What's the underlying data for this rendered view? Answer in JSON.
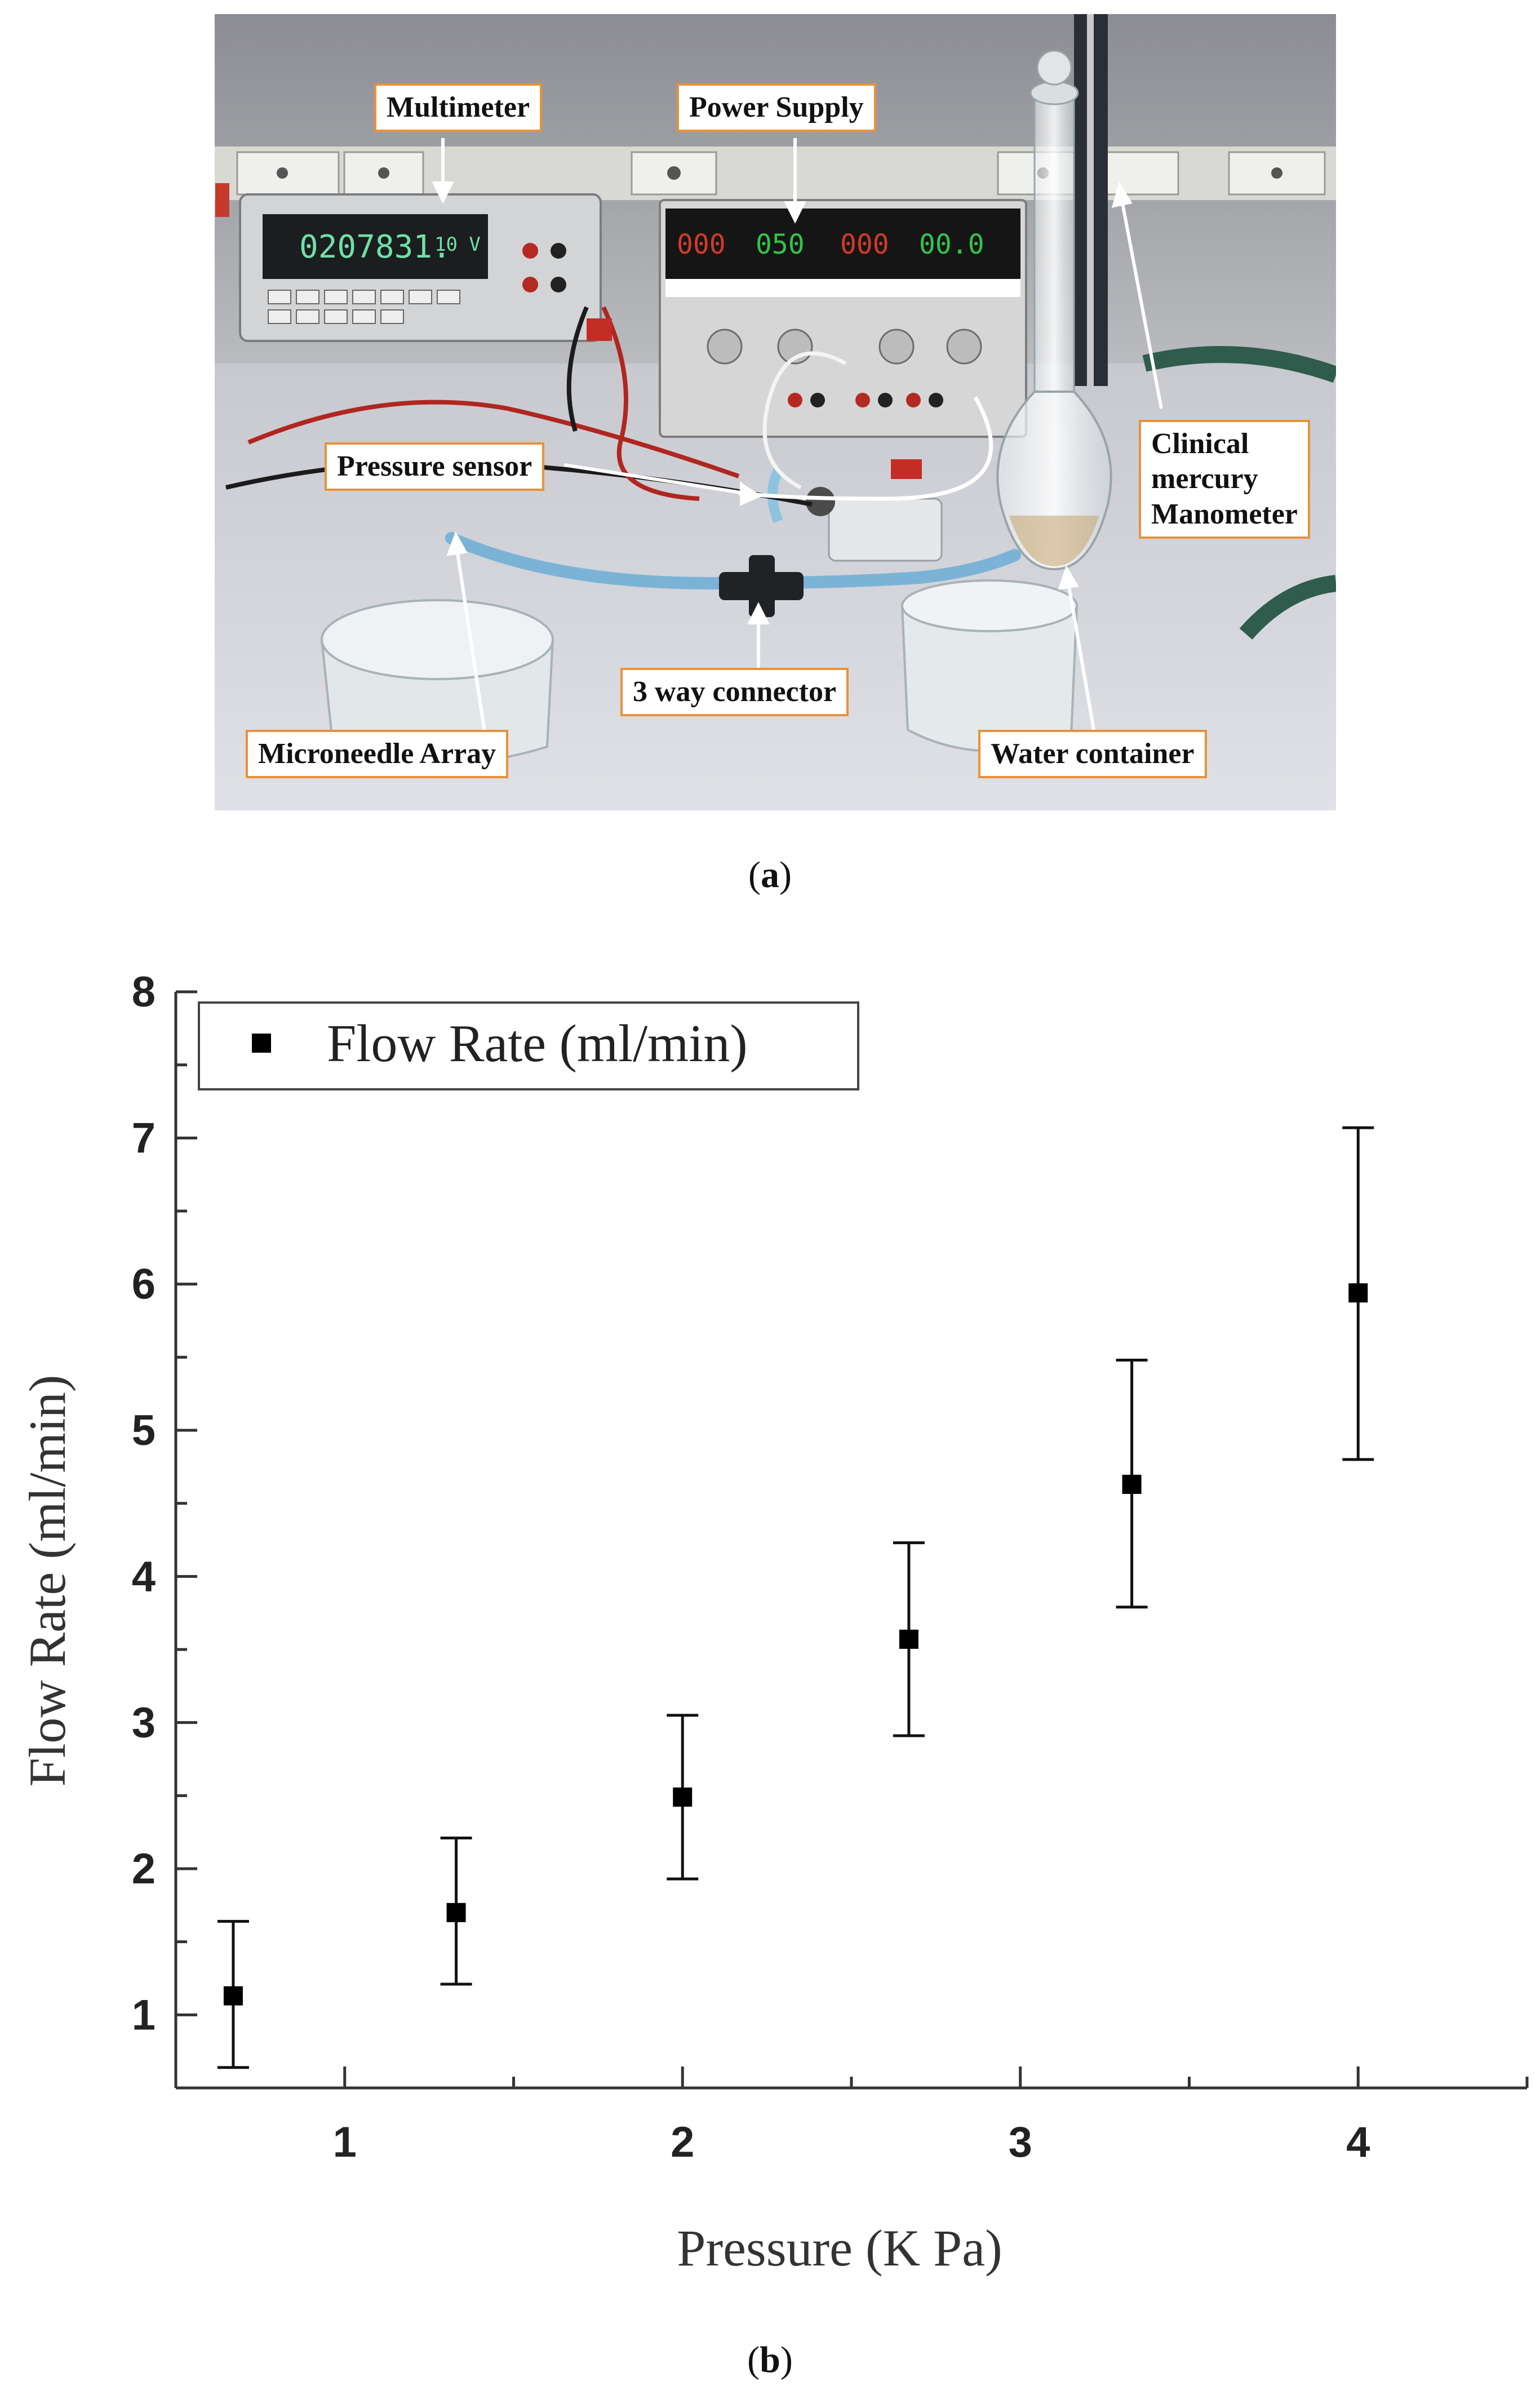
{
  "panel_a": {
    "labels": {
      "multimeter": "Multimeter",
      "power_supply": "Power Supply",
      "pressure_sensor": "Pressure sensor",
      "manometer_line1": "Clinical",
      "manometer_line2": "mercury",
      "manometer_line3": "Manometer",
      "microneedle": "Microneedle Array",
      "connector": "3 way connector",
      "water": "Water container"
    },
    "multimeter_display": "0207831.",
    "multimeter_range": "10 V",
    "caption_letter": "a"
  },
  "panel_b": {
    "caption_letter": "b"
  },
  "chart_data": {
    "type": "scatter",
    "xlabel": "Pressure (K Pa)",
    "ylabel": "Flow Rate (ml/min)",
    "xlim": [
      0.5,
      4.5
    ],
    "ylim": [
      0.5,
      8
    ],
    "xticks": [
      "1",
      "2",
      "3",
      "4"
    ],
    "yticks": [
      "1",
      "2",
      "3",
      "4",
      "5",
      "6",
      "7",
      "8"
    ],
    "legend": "top-left",
    "series": [
      {
        "name": "Flow Rate (ml/min)",
        "marker": "square",
        "color": "#000000",
        "x": [
          0.67,
          1.33,
          2.0,
          2.67,
          3.33,
          4.0
        ],
        "y": [
          1.13,
          1.7,
          2.49,
          3.57,
          4.63,
          5.94
        ],
        "err_low": [
          0.64,
          1.21,
          1.93,
          2.91,
          3.79,
          4.8
        ],
        "err_high": [
          1.64,
          2.21,
          3.05,
          4.23,
          5.48,
          7.07
        ]
      }
    ]
  }
}
